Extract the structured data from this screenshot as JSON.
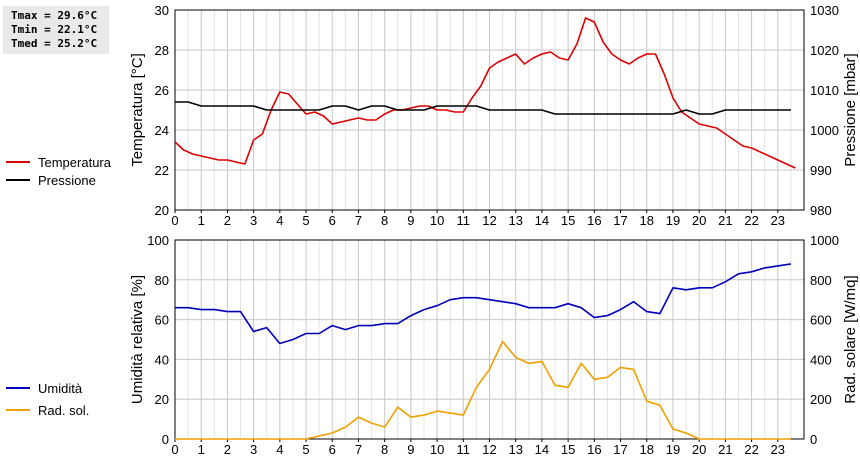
{
  "stats": {
    "tmax": "Tmax = 29.6°C",
    "tmin": "Tmin = 22.1°C",
    "tmed": "Tmed = 25.2°C"
  },
  "colors": {
    "temperature": "#dd0000",
    "pressure": "#000000",
    "humidity": "#0000bb",
    "radiation": "#f0a000",
    "grid": "#c8c8c8"
  },
  "chart_data": [
    {
      "type": "line",
      "xlabel": "",
      "ylabel": "Temperatura [°C]",
      "y2label": "Pressione [mbar]",
      "xlim": [
        0,
        24
      ],
      "ylim": [
        20,
        30
      ],
      "y2lim": [
        980,
        1030
      ],
      "x_ticks": [
        0,
        1,
        2,
        3,
        4,
        5,
        6,
        7,
        8,
        9,
        10,
        11,
        12,
        13,
        14,
        15,
        16,
        17,
        18,
        19,
        20,
        21,
        22,
        23
      ],
      "y_ticks": [
        20,
        22,
        24,
        26,
        28,
        30
      ],
      "y2_ticks": [
        980,
        990,
        1000,
        1010,
        1020,
        1030
      ],
      "grid": true,
      "legend_position": "left",
      "series": [
        {
          "name": "Temperatura",
          "axis": "left",
          "x": [
            0,
            0.333,
            0.667,
            1,
            1.333,
            1.667,
            2,
            2.333,
            2.667,
            3,
            3.333,
            3.667,
            4,
            4.333,
            4.667,
            5,
            5.333,
            5.667,
            6,
            6.333,
            6.667,
            7,
            7.333,
            7.667,
            8,
            8.333,
            8.667,
            9,
            9.333,
            9.667,
            10,
            10.333,
            10.667,
            11,
            11.333,
            11.667,
            12,
            12.333,
            12.667,
            13,
            13.333,
            13.667,
            14,
            14.333,
            14.667,
            15,
            15.333,
            15.667,
            16,
            16.333,
            16.667,
            17,
            17.333,
            17.667,
            18,
            18.333,
            18.667,
            19,
            19.333,
            19.667,
            20,
            20.333,
            20.667,
            21,
            21.333,
            21.667,
            22,
            22.333,
            22.667,
            23,
            23.333,
            23.667
          ],
          "values": [
            23.4,
            23.0,
            22.8,
            22.7,
            22.6,
            22.5,
            22.5,
            22.4,
            22.3,
            23.5,
            23.8,
            25.0,
            25.9,
            25.8,
            25.3,
            24.8,
            24.9,
            24.7,
            24.3,
            24.4,
            24.5,
            24.6,
            24.5,
            24.5,
            24.8,
            25.0,
            25.0,
            25.1,
            25.2,
            25.2,
            25.0,
            25.0,
            24.9,
            24.9,
            25.6,
            26.2,
            27.1,
            27.4,
            27.6,
            27.8,
            27.3,
            27.6,
            27.8,
            27.9,
            27.6,
            27.5,
            28.3,
            29.6,
            29.4,
            28.4,
            27.8,
            27.5,
            27.3,
            27.6,
            27.8,
            27.8,
            26.8,
            25.6,
            24.9,
            24.6,
            24.3,
            24.2,
            24.1,
            23.8,
            23.5,
            23.2,
            23.1,
            22.9,
            22.7,
            22.5,
            22.3,
            22.1
          ]
        },
        {
          "name": "Pressione",
          "axis": "right",
          "x": [
            0,
            0.5,
            1,
            1.5,
            2,
            2.5,
            3,
            3.5,
            4,
            4.5,
            5,
            5.5,
            6,
            6.5,
            7,
            7.5,
            8,
            8.5,
            9,
            9.5,
            10,
            10.5,
            11,
            11.5,
            12,
            12.5,
            13,
            13.5,
            14,
            14.5,
            15,
            15.5,
            16,
            16.5,
            17,
            17.5,
            18,
            18.5,
            19,
            19.5,
            20,
            20.5,
            21,
            21.5,
            22,
            22.5,
            23,
            23.5
          ],
          "values": [
            1007,
            1007,
            1006,
            1006,
            1006,
            1006,
            1006,
            1005,
            1005,
            1005,
            1005,
            1005,
            1006,
            1006,
            1005,
            1006,
            1006,
            1005,
            1005,
            1005,
            1006,
            1006,
            1006,
            1006,
            1005,
            1005,
            1005,
            1005,
            1005,
            1004,
            1004,
            1004,
            1004,
            1004,
            1004,
            1004,
            1004,
            1004,
            1004,
            1005,
            1004,
            1004,
            1005,
            1005,
            1005,
            1005,
            1005,
            1005
          ]
        }
      ]
    },
    {
      "type": "line",
      "xlabel": "",
      "ylabel": "Umidità relativa [%]",
      "y2label": "Rad. solare [W/mq]",
      "xlim": [
        0,
        24
      ],
      "ylim": [
        0,
        100
      ],
      "y2lim": [
        0,
        1000
      ],
      "x_ticks": [
        0,
        1,
        2,
        3,
        4,
        5,
        6,
        7,
        8,
        9,
        10,
        11,
        12,
        13,
        14,
        15,
        16,
        17,
        18,
        19,
        20,
        21,
        22,
        23
      ],
      "y_ticks": [
        0,
        20,
        40,
        60,
        80,
        100
      ],
      "y2_ticks": [
        0,
        200,
        400,
        600,
        800,
        1000
      ],
      "grid": true,
      "legend_position": "left",
      "series": [
        {
          "name": "Umidità",
          "axis": "left",
          "x": [
            0,
            0.5,
            1,
            1.5,
            2,
            2.5,
            3,
            3.5,
            4,
            4.5,
            5,
            5.5,
            6,
            6.5,
            7,
            7.5,
            8,
            8.5,
            9,
            9.5,
            10,
            10.5,
            11,
            11.5,
            12,
            12.5,
            13,
            13.5,
            14,
            14.5,
            15,
            15.5,
            16,
            16.5,
            17,
            17.5,
            18,
            18.5,
            19,
            19.5,
            20,
            20.5,
            21,
            21.5,
            22,
            22.5,
            23,
            23.5
          ],
          "values": [
            66,
            66,
            65,
            65,
            64,
            64,
            54,
            56,
            48,
            50,
            53,
            53,
            57,
            55,
            57,
            57,
            58,
            58,
            62,
            65,
            67,
            70,
            71,
            71,
            70,
            69,
            68,
            66,
            66,
            66,
            68,
            66,
            61,
            62,
            65,
            69,
            64,
            63,
            76,
            75,
            76,
            76,
            79,
            83,
            84,
            86,
            87,
            88
          ]
        },
        {
          "name": "Rad. sol.",
          "axis": "right",
          "x": [
            0,
            0.5,
            1,
            1.5,
            2,
            2.5,
            3,
            3.5,
            4,
            4.5,
            5,
            5.5,
            6,
            6.5,
            7,
            7.5,
            8,
            8.5,
            9,
            9.5,
            10,
            10.5,
            11,
            11.5,
            12,
            12.5,
            13,
            13.5,
            14,
            14.5,
            15,
            15.5,
            16,
            16.5,
            17,
            17.5,
            18,
            18.5,
            19,
            19.5,
            20,
            20.5,
            21,
            21.5,
            22,
            22.5,
            23,
            23.5
          ],
          "values": [
            0,
            0,
            0,
            0,
            0,
            0,
            0,
            0,
            0,
            0,
            0,
            15,
            30,
            60,
            110,
            80,
            60,
            160,
            110,
            120,
            140,
            130,
            120,
            260,
            350,
            490,
            410,
            380,
            390,
            270,
            260,
            380,
            300,
            310,
            360,
            350,
            190,
            170,
            50,
            30,
            0,
            0,
            0,
            0,
            0,
            0,
            0,
            0
          ]
        }
      ]
    }
  ]
}
